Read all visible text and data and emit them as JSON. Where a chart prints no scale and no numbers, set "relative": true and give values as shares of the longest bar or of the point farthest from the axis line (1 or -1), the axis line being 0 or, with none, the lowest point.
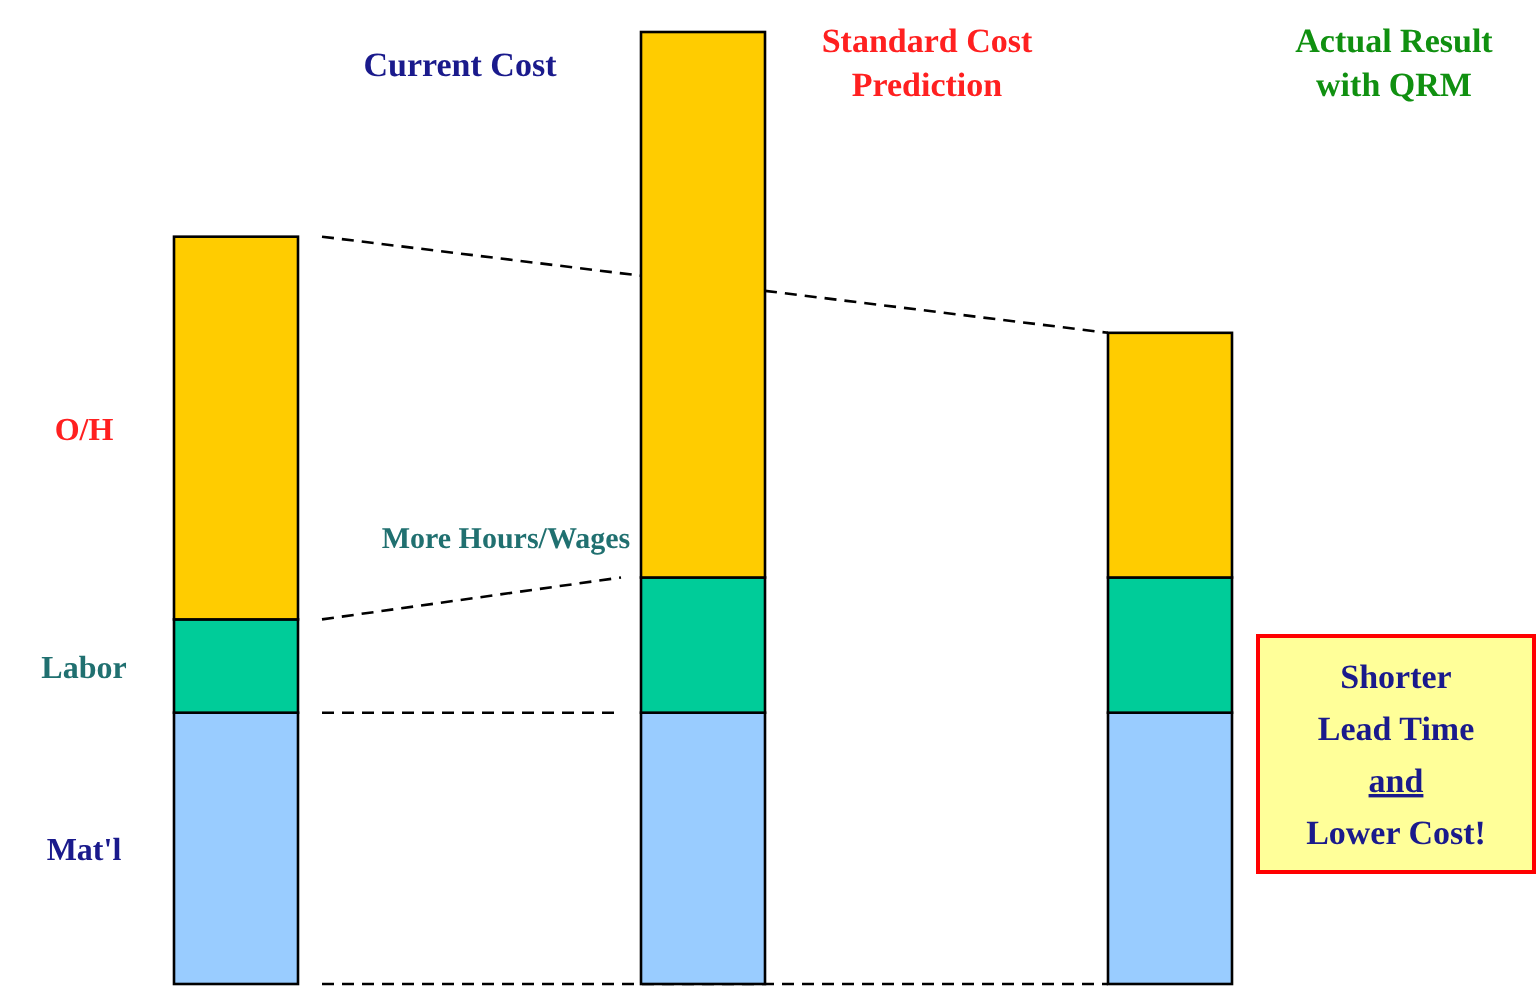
{
  "chart_data": {
    "type": "bar",
    "stacked": true,
    "relative": true,
    "categories": [
      "Current Cost",
      "Standard Cost Prediction",
      "Actual Result with QRM"
    ],
    "series": [
      {
        "name": "Mat'l",
        "color": "#99ccff",
        "values": [
          0.285,
          0.285,
          0.285
        ]
      },
      {
        "name": "Labor",
        "color": "#00cc99",
        "values": [
          0.098,
          0.142,
          0.142
        ]
      },
      {
        "name": "O/H",
        "color": "#ffcc00",
        "values": [
          0.402,
          0.573,
          0.257
        ]
      }
    ],
    "annotations": [
      "More Hours/Wages",
      "Shorter\nLead Time\nand\nLower Cost!"
    ]
  }
}
